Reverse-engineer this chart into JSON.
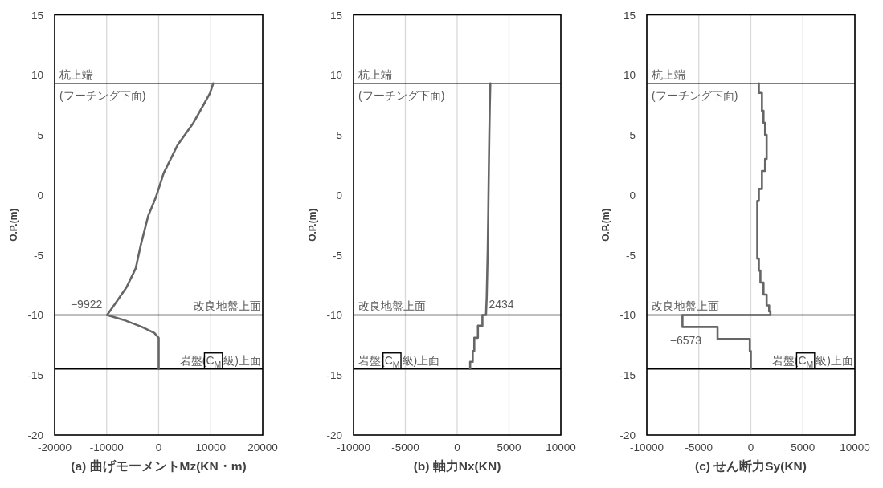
{
  "chart_data": [
    {
      "type": "line",
      "xlabel": "(a) 曲げモーメントMz(KN・m)",
      "ylabel": "O.P.(m)",
      "xlim": [
        -20000,
        20000
      ],
      "xticks": [
        -20000,
        -10000,
        0,
        10000,
        20000
      ],
      "ylim": [
        -20,
        15
      ],
      "yticks": [
        -20,
        -15,
        -10,
        -5,
        0,
        5,
        10,
        15
      ],
      "grid": "x",
      "series": [
        {
          "color": "#666666",
          "x": [
            10480,
            9900,
            6600,
            3630,
            950,
            -540,
            -2020,
            -3510,
            -4400,
            -6190,
            -8270,
            -9922,
            -6790,
            -3210,
            -830,
            0,
            0
          ],
          "values": [
            9.3,
            8.5,
            5.95,
            4.15,
            1.8,
            -0.2,
            -1.75,
            -4.3,
            -6.1,
            -7.7,
            -9.0,
            -10,
            -10.4,
            -11.0,
            -11.5,
            -11.9,
            -14.5
          ]
        }
      ],
      "ref_lines": [
        {
          "axis": "y",
          "value": 9.3,
          "color": "#000000",
          "label": "杭上端\n(フーチング下面)"
        },
        {
          "axis": "y",
          "value": -10,
          "color": "#000000",
          "label": "改良地盤上面"
        },
        {
          "axis": "y",
          "value": -14.5,
          "color": "#000000",
          "label": "岩盤(C$_{M}$級)上面"
        }
      ],
      "annotations": [
        {
          "text": "−9922",
          "x": -9922,
          "y": -10
        }
      ]
    },
    {
      "type": "line",
      "xlabel": "(b) 軸力Nx(KN)",
      "ylabel": "O.P.(m)",
      "xlim": [
        -10000,
        10000
      ],
      "xticks": [
        -10000,
        -5000,
        0,
        5000,
        10000
      ],
      "ylim": [
        -20,
        15
      ],
      "yticks": [
        -20,
        -15,
        -10,
        -5,
        0,
        5,
        10,
        15
      ],
      "grid": "x",
      "series": [
        {
          "color": "#666666",
          "x": [
            3200,
            3150,
            3100,
            3050,
            3000,
            2950,
            2900,
            2850,
            2780,
            2780,
            2434,
            2434,
            2000,
            2000,
            1650,
            1650,
            1500,
            1500,
            1250,
            1250
          ],
          "values": [
            9.3,
            7.5,
            5.0,
            2.0,
            -1.5,
            -4.5,
            -6.5,
            -8.5,
            -10,
            -10,
            -10,
            -10.9,
            -10.9,
            -11.9,
            -11.9,
            -13.0,
            -13.0,
            -13.9,
            -13.9,
            -14.5
          ]
        }
      ],
      "ref_lines": [
        {
          "axis": "y",
          "value": 9.3,
          "color": "#000000",
          "label": "杭上端\n(フーチング下面)"
        },
        {
          "axis": "y",
          "value": -10,
          "color": "#000000",
          "label": "改良地盤上面"
        },
        {
          "axis": "y",
          "value": -14.5,
          "color": "#000000",
          "label": "岩盤(C$_{M}$級)上面"
        }
      ],
      "annotations": [
        {
          "text": "2434",
          "x": 2434,
          "y": -10
        }
      ]
    },
    {
      "type": "line",
      "xlabel": "(c) せん断力Sy(KN)",
      "ylabel": "O.P.(m)",
      "xlim": [
        -10000,
        10000
      ],
      "xticks": [
        -10000,
        -5000,
        0,
        5000,
        10000
      ],
      "ylim": [
        -20,
        15
      ],
      "yticks": [
        -20,
        -15,
        -10,
        -5,
        0,
        5,
        10,
        15
      ],
      "grid": "x",
      "series": [
        {
          "color": "#666666",
          "x": [
            770,
            770,
            1070,
            1070,
            1220,
            1220,
            1370,
            1370,
            1520,
            1520,
            1370,
            1370,
            1070,
            1070,
            770,
            770,
            620,
            620,
            770,
            770,
            920,
            920,
            1220,
            1220,
            1520,
            1520,
            1760,
            1760,
            1880,
            1880,
            -6573,
            -6573,
            -3200,
            -3200,
            -100,
            -100,
            0,
            0
          ],
          "values": [
            9.3,
            8.5,
            8.5,
            7.0,
            7.0,
            6.0,
            6.0,
            5.0,
            5.0,
            3.0,
            3.0,
            2.0,
            2.0,
            0.5,
            0.5,
            -0.5,
            -0.5,
            -5.3,
            -5.3,
            -6.3,
            -6.3,
            -7.3,
            -7.3,
            -8.3,
            -8.3,
            -9.2,
            -9.2,
            -9.7,
            -9.7,
            -10,
            -10,
            -11.0,
            -11.0,
            -12.0,
            -12.0,
            -13.0,
            -13.0,
            -14.5
          ]
        }
      ],
      "ref_lines": [
        {
          "axis": "y",
          "value": 9.3,
          "color": "#000000",
          "label": "杭上端\n(フーチング下面)"
        },
        {
          "axis": "y",
          "value": -10,
          "color": "#000000",
          "label": "改良地盤上面"
        },
        {
          "axis": "y",
          "value": -14.5,
          "color": "#000000",
          "label": "岩盤(C$_{M}$級)上面"
        }
      ],
      "annotations": [
        {
          "text": "−6573",
          "x": -6573,
          "y": -11.0
        }
      ]
    }
  ]
}
